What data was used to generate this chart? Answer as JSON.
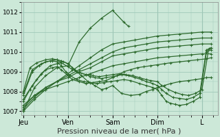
{
  "background_color": "#cce8d8",
  "plot_bg_color": "#cce8d8",
  "line_color": "#2d6a2d",
  "marker": "+",
  "marker_size": 3,
  "line_width": 0.9,
  "ylim": [
    1006.8,
    1012.5
  ],
  "yticks": [
    1007,
    1008,
    1009,
    1010,
    1011,
    1012
  ],
  "xlabel": "Pression niveau de la mer( hPa )",
  "xlabel_fontsize": 8,
  "xtick_labels": [
    "Jeu",
    "Ven",
    "Sam",
    "Dim",
    "L"
  ],
  "grid_color": "#a0c8b8",
  "title": "",
  "xtick_positions": [
    0,
    1.0,
    2.0,
    3.0,
    4.0
  ],
  "xmin": -0.05,
  "xmax": 4.35,
  "series": [
    {
      "x": [
        0.0,
        0.25,
        0.5,
        0.75,
        1.0,
        1.25,
        1.5,
        1.75,
        2.0,
        2.25,
        2.35
      ],
      "y": [
        1007.0,
        1008.2,
        1008.8,
        1009.2,
        1009.3,
        1010.5,
        1011.2,
        1011.7,
        1012.1,
        1011.5,
        1011.3
      ]
    },
    {
      "x": [
        0.0,
        0.25,
        0.5,
        0.75,
        1.0,
        1.25,
        1.5,
        1.75,
        2.0,
        2.25,
        2.5,
        2.75,
        3.0,
        3.25,
        3.5,
        3.75,
        4.0,
        4.2
      ],
      "y": [
        1007.0,
        1007.6,
        1008.1,
        1008.5,
        1008.9,
        1009.3,
        1009.7,
        1010.1,
        1010.4,
        1010.5,
        1010.6,
        1010.7,
        1010.8,
        1010.85,
        1010.9,
        1010.95,
        1011.0,
        1011.0
      ]
    },
    {
      "x": [
        0.0,
        0.25,
        0.5,
        0.75,
        1.0,
        1.25,
        1.5,
        1.75,
        2.0,
        2.25,
        2.5,
        2.75,
        3.0,
        3.25,
        3.5,
        3.75,
        4.0,
        4.2
      ],
      "y": [
        1007.1,
        1007.7,
        1008.2,
        1008.5,
        1008.8,
        1009.1,
        1009.4,
        1009.7,
        1010.0,
        1010.2,
        1010.3,
        1010.4,
        1010.5,
        1010.55,
        1010.6,
        1010.65,
        1010.7,
        1010.7
      ]
    },
    {
      "x": [
        0.0,
        0.25,
        0.5,
        0.75,
        1.0,
        1.25,
        1.5,
        1.75,
        2.0,
        2.25,
        2.5,
        2.75,
        3.0,
        3.25,
        3.5,
        3.75,
        4.0,
        4.2
      ],
      "y": [
        1007.2,
        1007.8,
        1008.2,
        1008.5,
        1008.7,
        1009.0,
        1009.2,
        1009.5,
        1009.8,
        1009.9,
        1010.0,
        1010.1,
        1010.2,
        1010.25,
        1010.3,
        1010.35,
        1010.4,
        1010.4
      ]
    },
    {
      "x": [
        0.0,
        0.25,
        0.5,
        0.75,
        1.0,
        1.25,
        1.5,
        1.75,
        2.0,
        2.25,
        2.5,
        2.75,
        3.0,
        3.25,
        3.5,
        3.75,
        4.0,
        4.2
      ],
      "y": [
        1007.3,
        1007.8,
        1008.1,
        1008.3,
        1008.5,
        1008.7,
        1008.9,
        1009.1,
        1009.3,
        1009.4,
        1009.5,
        1009.6,
        1009.7,
        1009.75,
        1009.8,
        1009.85,
        1009.9,
        1009.9
      ]
    },
    {
      "x": [
        0.0,
        0.15,
        0.3,
        0.5,
        0.65,
        0.75,
        0.85,
        1.0,
        1.1,
        1.25,
        1.4,
        1.55,
        1.7,
        1.85,
        2.0,
        2.1,
        2.25,
        2.4,
        2.55,
        2.7,
        2.85,
        3.0,
        3.15,
        3.3,
        3.5,
        3.7,
        3.9,
        4.1,
        4.2
      ],
      "y": [
        1007.5,
        1008.1,
        1008.6,
        1009.1,
        1009.2,
        1009.25,
        1009.1,
        1008.8,
        1008.6,
        1008.5,
        1008.4,
        1008.45,
        1008.5,
        1008.55,
        1008.7,
        1008.8,
        1009.0,
        1009.1,
        1009.2,
        1009.25,
        1009.3,
        1009.35,
        1009.4,
        1009.45,
        1009.5,
        1009.55,
        1009.6,
        1009.65,
        1009.7
      ]
    },
    {
      "x": [
        0.0,
        0.2,
        0.4,
        0.6,
        0.75,
        0.9,
        1.0,
        1.15,
        1.3,
        1.45,
        1.6,
        1.75,
        1.85,
        2.0,
        2.2,
        2.4,
        2.6,
        2.75,
        2.9,
        3.0,
        3.15,
        3.3,
        3.5,
        3.7,
        3.85,
        4.0,
        4.1,
        4.2
      ],
      "y": [
        1007.6,
        1008.3,
        1008.9,
        1009.3,
        1009.4,
        1009.5,
        1009.4,
        1009.1,
        1008.8,
        1008.5,
        1008.3,
        1008.1,
        1008.15,
        1008.3,
        1007.9,
        1007.8,
        1007.85,
        1008.0,
        1008.1,
        1008.2,
        1008.3,
        1008.4,
        1008.5,
        1008.55,
        1008.6,
        1008.65,
        1008.7,
        1008.7
      ]
    },
    {
      "x": [
        0.0,
        0.2,
        0.35,
        0.5,
        0.65,
        0.75,
        0.85,
        0.95,
        1.05,
        1.2,
        1.35,
        1.5,
        1.65,
        1.8,
        1.95,
        2.1,
        2.25,
        2.4,
        2.6,
        2.75,
        2.9,
        3.0,
        3.1,
        3.2,
        3.3,
        3.4,
        3.5,
        3.65,
        3.8,
        3.95,
        4.1,
        4.2
      ],
      "y": [
        1007.8,
        1009.0,
        1009.3,
        1009.5,
        1009.55,
        1009.5,
        1009.3,
        1009.0,
        1008.8,
        1008.6,
        1008.5,
        1008.45,
        1008.4,
        1008.45,
        1008.5,
        1008.55,
        1008.6,
        1008.55,
        1008.4,
        1008.3,
        1008.2,
        1008.1,
        1007.8,
        1007.5,
        1007.4,
        1007.35,
        1007.3,
        1007.35,
        1007.5,
        1007.7,
        1010.0,
        1010.1
      ]
    },
    {
      "x": [
        0.0,
        0.2,
        0.4,
        0.6,
        0.75,
        0.85,
        1.0,
        1.1,
        1.2,
        1.4,
        1.5,
        1.6,
        1.75,
        1.85,
        2.0,
        2.1,
        2.2,
        2.35,
        2.5,
        2.65,
        2.75,
        2.9,
        3.0,
        3.1,
        3.2,
        3.35,
        3.5,
        3.65,
        3.8,
        3.95,
        4.1,
        4.2
      ],
      "y": [
        1007.9,
        1009.1,
        1009.4,
        1009.55,
        1009.6,
        1009.55,
        1009.4,
        1009.2,
        1009.0,
        1008.85,
        1008.75,
        1008.7,
        1008.65,
        1008.7,
        1008.75,
        1008.8,
        1008.85,
        1008.8,
        1008.7,
        1008.6,
        1008.5,
        1008.4,
        1008.3,
        1008.1,
        1007.9,
        1007.7,
        1007.65,
        1007.6,
        1007.7,
        1007.9,
        1010.1,
        1010.2
      ]
    },
    {
      "x": [
        0.0,
        0.15,
        0.3,
        0.5,
        0.65,
        0.75,
        0.85,
        1.0,
        1.1,
        1.25,
        1.4,
        1.55,
        1.7,
        1.85,
        2.0,
        2.15,
        2.3,
        2.45,
        2.6,
        2.75,
        2.85,
        3.0,
        3.1,
        3.25,
        3.4,
        3.55,
        3.7,
        3.85,
        4.0,
        4.15,
        4.2
      ],
      "y": [
        1008.0,
        1009.2,
        1009.45,
        1009.6,
        1009.65,
        1009.6,
        1009.45,
        1009.25,
        1009.1,
        1008.95,
        1008.85,
        1008.8,
        1008.75,
        1008.8,
        1008.85,
        1008.9,
        1008.85,
        1008.8,
        1008.7,
        1008.6,
        1008.55,
        1008.5,
        1008.3,
        1008.1,
        1007.95,
        1007.85,
        1007.8,
        1007.9,
        1008.1,
        1010.15,
        1010.2
      ]
    }
  ]
}
